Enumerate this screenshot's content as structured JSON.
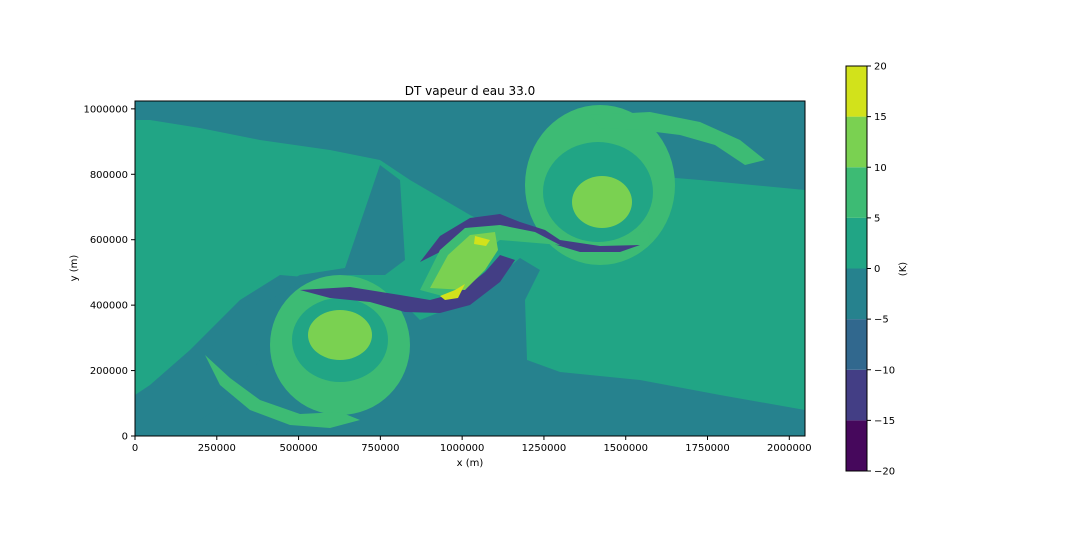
{
  "chart_data": {
    "type": "heatmap",
    "title": "DT vapeur d eau 33.0",
    "xlabel": "x (m)",
    "ylabel": "y (m)",
    "xlim": [
      0,
      2048000
    ],
    "ylim": [
      0,
      1024000
    ],
    "xticks": [
      0,
      250000,
      500000,
      750000,
      1000000,
      1250000,
      1500000,
      1750000,
      2000000
    ],
    "yticks": [
      0,
      200000,
      400000,
      600000,
      800000,
      1000000
    ],
    "colorbar": {
      "label": "(K)",
      "levels": [
        -20,
        -15,
        -10,
        -5,
        0,
        5,
        10,
        15,
        20
      ],
      "colors": [
        "#46085c",
        "#433e85",
        "#31688e",
        "#26828e",
        "#21a585",
        "#3dbb74",
        "#7ad151",
        "#d2e21b"
      ]
    },
    "background_level": "0 to 5 / -5 to 0",
    "features": [
      {
        "name": "upper-right vortex",
        "center": [
          1430000,
          760000
        ],
        "max_band": "10 to 15"
      },
      {
        "name": "lower-left vortex",
        "center": [
          640000,
          300000
        ],
        "max_band": "10 to 15"
      },
      {
        "name": "central filament",
        "center": [
          1000000,
          520000
        ],
        "max_band": "15 to 20",
        "min_band": "-15 to -10"
      }
    ]
  }
}
